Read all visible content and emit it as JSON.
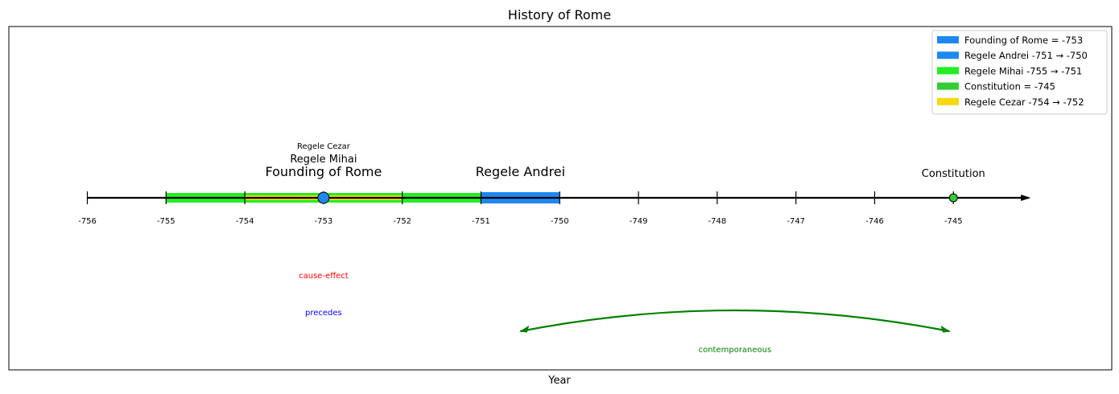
{
  "chart_data": {
    "type": "timeline",
    "title": "History of Rome",
    "xlabel": "Year",
    "xlim": [
      -756,
      -744
    ],
    "ticks": [
      -756,
      -755,
      -754,
      -753,
      -752,
      -751,
      -750,
      -749,
      -748,
      -747,
      -746,
      -745
    ],
    "tick_labels": [
      "-756",
      "-755",
      "-754",
      "-753",
      "-752",
      "-751",
      "-750",
      "-749",
      "-748",
      "-747",
      "-746",
      "-745"
    ],
    "spans": [
      {
        "name": "Regele Mihai",
        "start": -755,
        "end": -751,
        "color": "#22ee22",
        "label": "Regele Mihai",
        "label_size": "medium"
      },
      {
        "name": "Regele Cezar",
        "start": -754,
        "end": -752,
        "color": "#f5d80f",
        "label": "Regele Cezar",
        "label_size": "small"
      },
      {
        "name": "Regele Andrei",
        "start": -751,
        "end": -750,
        "color": "#1e88f0",
        "label": "Regele Andrei",
        "label_size": "large"
      }
    ],
    "events": [
      {
        "name": "Founding of Rome",
        "year": -753,
        "color": "#1e88f0",
        "label": "Founding of Rome",
        "marker": "large"
      },
      {
        "name": "Constitution",
        "year": -745,
        "color": "#33cc33",
        "label": "Constitution",
        "marker": "small"
      }
    ],
    "legend": {
      "placement": "top-right",
      "entries": [
        {
          "label": "Founding of Rome = -753",
          "color": "#1e88f0"
        },
        {
          "label": "Regele Andrei  -751 → -750",
          "color": "#1e88f0"
        },
        {
          "label": "Regele Mihai  -755 → -751",
          "color": "#22ee22"
        },
        {
          "label": "Constitution = -745",
          "color": "#33cc33"
        },
        {
          "label": "Regele Cezar  -754 → -752",
          "color": "#f5d80f"
        }
      ]
    },
    "relations": [
      {
        "label": "cause-effect",
        "color": "#ff0000",
        "from": null,
        "to": null
      },
      {
        "label": "precedes",
        "color": "#0000ff",
        "from": null,
        "to": null
      },
      {
        "label": "contemporaneous",
        "color": "#008000",
        "from": -750.5,
        "to": -745.05
      }
    ]
  }
}
